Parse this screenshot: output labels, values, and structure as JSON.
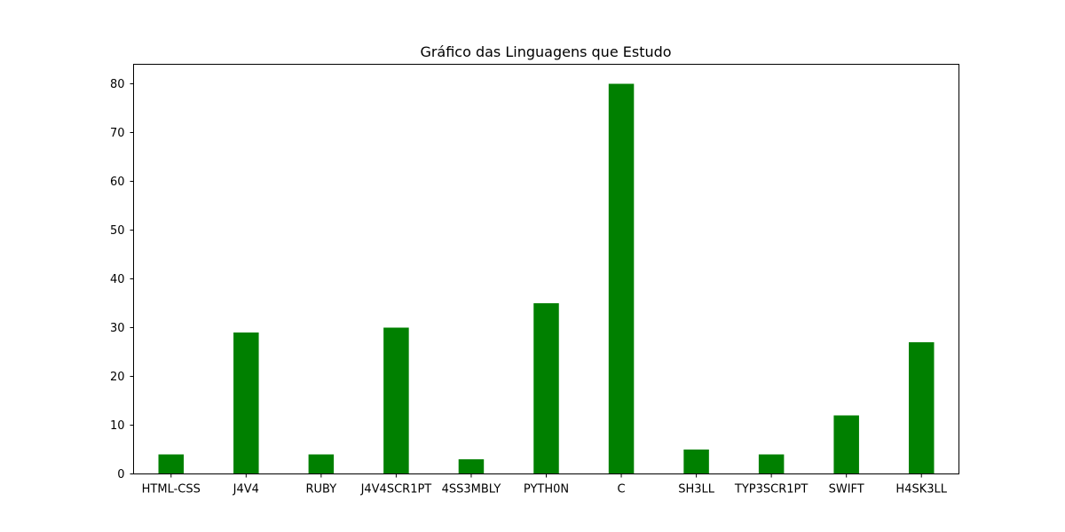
{
  "chart_data": {
    "type": "bar",
    "title": "Gráfico das Linguagens que Estudo",
    "xlabel": "",
    "ylabel": "",
    "categories": [
      "HTML-CSS",
      "J4V4",
      "RUBY",
      "J4V4SCR1PT",
      "4SS3MBLY",
      "PYTH0N",
      "C",
      "SH3LL",
      "TYP3SCR1PT",
      "SWIFT",
      "H4SK3LL"
    ],
    "values": [
      4,
      29,
      4,
      30,
      3,
      35,
      80,
      5,
      4,
      12,
      27
    ],
    "ylim": [
      0,
      84
    ],
    "yticks": [
      0,
      10,
      20,
      30,
      40,
      50,
      60,
      70,
      80
    ],
    "bar_color": "#008000",
    "grid": false,
    "legend": "none"
  }
}
